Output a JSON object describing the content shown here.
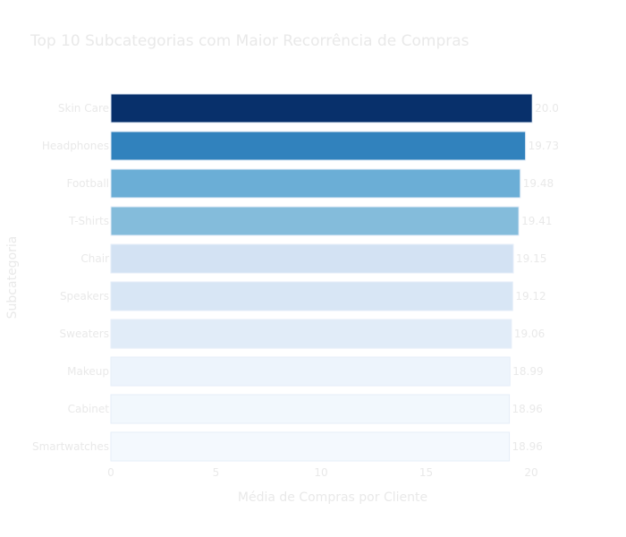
{
  "chart_data": {
    "type": "bar",
    "orientation": "horizontal",
    "title": "Top 10 Subcategorias com Maior Recorrência de Compras",
    "xlabel": "Média de Compras por Cliente",
    "ylabel": "Subcategoria",
    "xlim": [
      0,
      20
    ],
    "x_ticks": [
      "0",
      "5",
      "10",
      "15",
      "20"
    ],
    "grid": false,
    "categories": [
      "Skin Care",
      "Headphones",
      "Football",
      "T-Shirts",
      "Chair",
      "Speakers",
      "Sweaters",
      "Makeup",
      "Cabinet",
      "Smartwatches"
    ],
    "values": [
      20.05,
      19.73,
      19.48,
      19.41,
      19.15,
      19.12,
      19.06,
      18.99,
      18.96,
      18.96
    ],
    "labels": [
      "20.0",
      "19.73",
      "19.48",
      "19.41",
      "19.15",
      "19.12",
      "19.06",
      "18.99",
      "18.96",
      "18.96"
    ],
    "colors": [
      "#08306b",
      "#3182bd",
      "#6baed6",
      "#84bcdb",
      "#d3e2f3",
      "#d8e6f5",
      "#e1ecf8",
      "#edf4fc",
      "#f2f8fd",
      "#f4f9fe"
    ],
    "text_color": "#e9e9e9",
    "bar_outline": "#e6eef8"
  }
}
